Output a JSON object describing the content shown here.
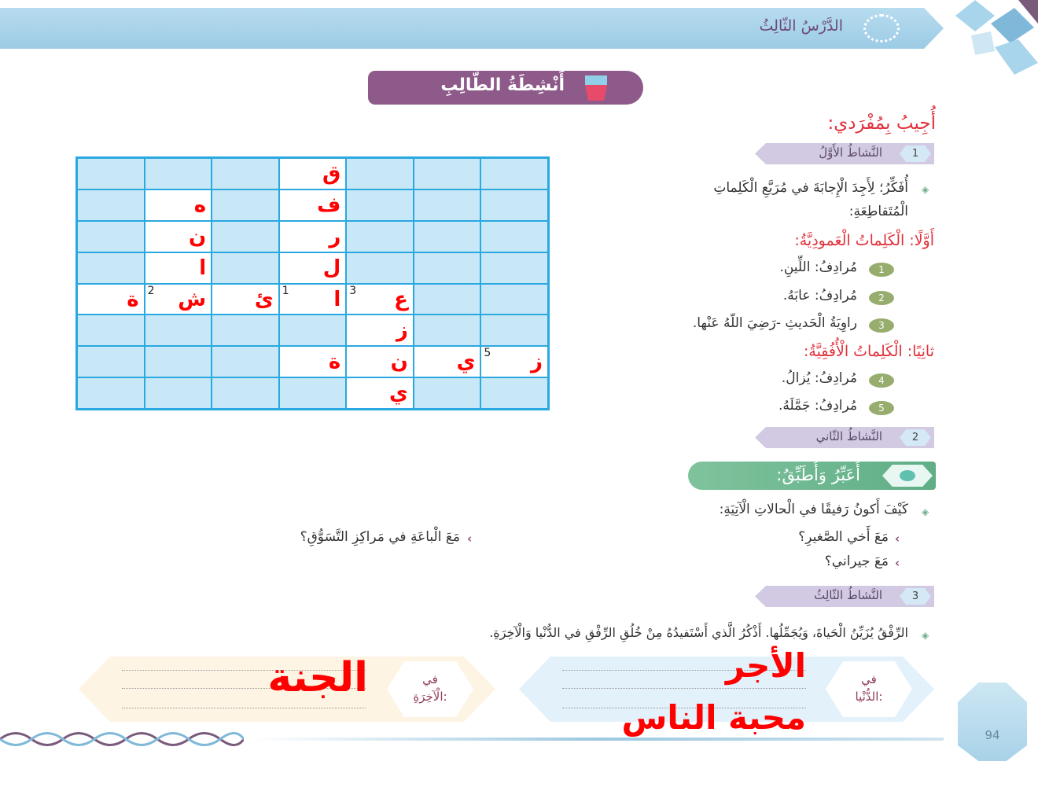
{
  "header": {
    "lesson_title": "الدَّرْسُ الثّالِثُ"
  },
  "activities_badge": "أَنْشِطَةُ الطّالِبِ",
  "individual_heading": "أُجِيبُ بِمُفْرَدي:",
  "activity1": {
    "number": "1",
    "label": "النَّشاطُ الأَوَّلُ",
    "instruction_line1": "أُفَكِّرُ؛ لِأَجِدَ الْإِجابَةَ في مُرَبَّعِ الْكَلِماتِ",
    "instruction_line2": "الْمُتَقاطِعَةِ:",
    "vertical_heading": "أَوَّلًا: الْكَلِماتُ الْعَمودِيَّةُ:",
    "vertical": [
      {
        "number": "1",
        "text": "مُرادِفُ: اللِّينِ."
      },
      {
        "number": "2",
        "text": "مُرادِفُ: عابَهُ."
      },
      {
        "number": "3",
        "text": "راوِيَةُ الْحَديثِ -رَضِيَ اللّهُ عَنْها."
      }
    ],
    "horizontal_heading": "ثانِيًا: الْكَلِماتُ الْأُفُقِيَّةُ:",
    "horizontal": [
      {
        "number": "4",
        "text": "مُرادِفُ: يُزالُ."
      },
      {
        "number": "5",
        "text": "مُرادِفُ: جَمَّلَهُ."
      }
    ]
  },
  "crossword": {
    "rows": [
      [
        null,
        null,
        null,
        {
          "letter": "ق"
        },
        null,
        null,
        null
      ],
      [
        null,
        {
          "letter": "ه"
        },
        null,
        {
          "letter": "ف"
        },
        null,
        null,
        null
      ],
      [
        null,
        {
          "letter": "ن"
        },
        null,
        {
          "letter": "ر"
        },
        null,
        null,
        null
      ],
      [
        null,
        {
          "letter": "ا"
        },
        null,
        {
          "letter": "ل"
        },
        null,
        null,
        null
      ],
      [
        {
          "letter": "ة"
        },
        {
          "letter": "ش",
          "number": "2"
        },
        {
          "letter": "ئ"
        },
        {
          "letter": "ا",
          "number": "1"
        },
        {
          "letter": "ع",
          "number": "3"
        },
        null,
        null
      ],
      [
        null,
        null,
        null,
        null,
        {
          "letter": "ز"
        },
        null,
        null
      ],
      [
        null,
        null,
        null,
        {
          "letter": "ة"
        },
        {
          "letter": "ن"
        },
        {
          "letter": "ي"
        },
        {
          "letter": "ز",
          "number": "5"
        }
      ],
      [
        null,
        null,
        null,
        null,
        {
          "letter": "ي"
        },
        null,
        null
      ]
    ]
  },
  "activity2": {
    "number": "2",
    "label": "النَّشاطُ الثّاني",
    "banner": "أُعَبِّرُ وَأُطَبِّقُ:",
    "question": "كَيْفَ أَكونُ رَفيقًا في الْحالاتِ الْآتِيَةِ:",
    "cases": [
      "مَعَ أَخي الصَّغيرِ؟",
      "مَعَ جيراني؟",
      "مَعَ الْباعَةِ في مَراكِزِ التَّسَوُّقِ؟"
    ]
  },
  "activity3": {
    "number": "3",
    "label": "النَّشاطُ الثّالِثُ",
    "prompt": "الرِّفْقُ يُزَيِّنُ الْحَياةَ، وَيُجَمِّلُها. أَذْكُرُ الَّذي أَسْتَفيدُهُ مِنْ خُلُقِ الرِّفْقِ في الدُّنْيا وَالْآخِرَةِ.",
    "world_label_1": "في",
    "world_label_2": "الدُّنْيا:",
    "world_answers": [
      "الأجر",
      "محبة الناس"
    ],
    "hereafter_label_1": "في",
    "hereafter_label_2": "الْآخِرَةِ:",
    "hereafter_answer": "الجنة"
  },
  "page_number": "94",
  "colors": {
    "handwriting": "#ff0000",
    "heading_red": "#e0303a",
    "grid_line": "#2aa8e0",
    "grid_fill": "#c8e8f8",
    "badge_purple": "#8e5a8a",
    "pill_lavender": "#d2c9e3",
    "banner_green": "#6fb890"
  }
}
